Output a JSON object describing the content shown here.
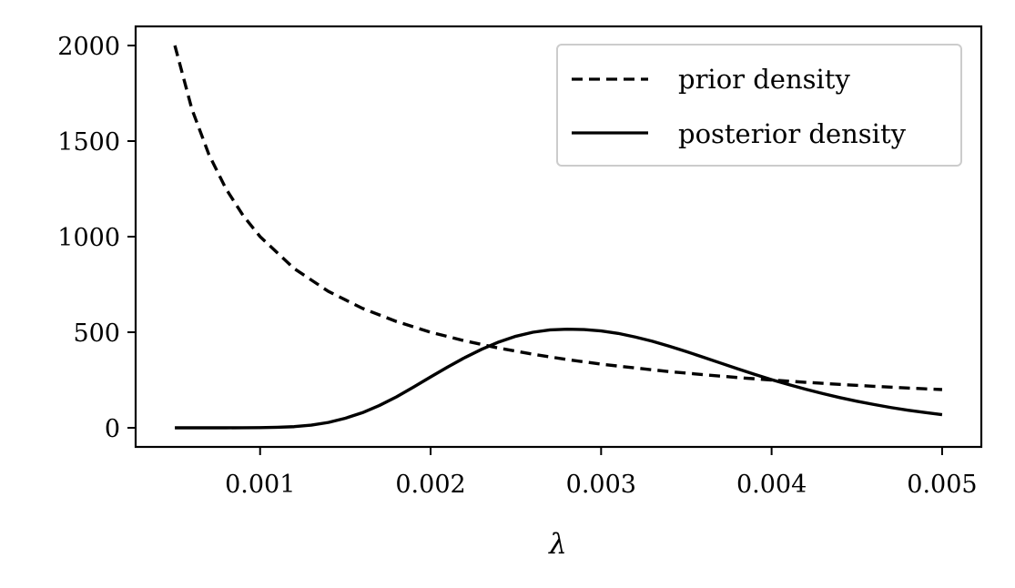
{
  "chart_data": {
    "type": "line",
    "title": "",
    "xlabel": "λ",
    "ylabel": "",
    "xlim": [
      0.00027,
      0.00523
    ],
    "ylim": [
      -100,
      2100
    ],
    "x_ticks": [
      0.001,
      0.002,
      0.003,
      0.004,
      0.005
    ],
    "x_tick_labels": [
      "0.001",
      "0.002",
      "0.003",
      "0.004",
      "0.005"
    ],
    "y_ticks": [
      0,
      500,
      1000,
      1500,
      2000
    ],
    "y_tick_labels": [
      "0",
      "500",
      "1000",
      "1500",
      "2000"
    ],
    "grid": false,
    "legend_position": "top-right",
    "series": [
      {
        "name": "prior density",
        "style": "dashed",
        "color": "#000000",
        "x": [
          0.0005,
          0.0006,
          0.0007,
          0.0008,
          0.0009,
          0.001,
          0.0012,
          0.0014,
          0.0016,
          0.0018,
          0.002,
          0.0022,
          0.0024,
          0.0026,
          0.0028,
          0.003,
          0.0032,
          0.0034,
          0.0036,
          0.0038,
          0.004,
          0.0042,
          0.0044,
          0.0046,
          0.0048,
          0.005
        ],
        "values": [
          2000,
          1667,
          1429,
          1250,
          1111,
          1000,
          833,
          714,
          625,
          556,
          500,
          455,
          417,
          385,
          357,
          333,
          313,
          294,
          278,
          263,
          250,
          238,
          227,
          217,
          208,
          200
        ]
      },
      {
        "name": "posterior density",
        "style": "solid",
        "color": "#000000",
        "x": [
          0.0005,
          0.0006,
          0.0007,
          0.0008,
          0.0009,
          0.001,
          0.0011,
          0.0012,
          0.0013,
          0.0014,
          0.0015,
          0.0016,
          0.0017,
          0.0018,
          0.0019,
          0.002,
          0.0021,
          0.0022,
          0.0023,
          0.0024,
          0.0025,
          0.0026,
          0.0027,
          0.0028,
          0.0029,
          0.003,
          0.0031,
          0.0032,
          0.0033,
          0.0034,
          0.0035,
          0.0036,
          0.0037,
          0.0038,
          0.0039,
          0.004,
          0.0041,
          0.0042,
          0.0043,
          0.0044,
          0.0045,
          0.0046,
          0.0047,
          0.0048,
          0.0049,
          0.005
        ],
        "values": [
          0,
          0,
          0,
          0,
          0.2,
          0.8,
          2.5,
          6,
          14,
          28,
          50,
          79,
          117,
          162,
          213,
          266,
          318,
          367,
          411,
          449,
          479,
          500,
          512,
          516,
          514,
          507,
          494,
          475,
          453,
          427,
          399,
          369,
          339,
          309,
          280,
          252,
          226,
          202,
          179,
          158,
          139,
          122,
          106,
          92,
          80,
          69
        ]
      }
    ]
  }
}
